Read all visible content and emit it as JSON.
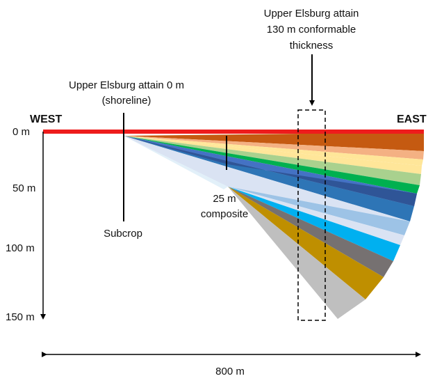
{
  "labels": {
    "west": "WEST",
    "east": "EAST",
    "shoreline_line1": "Upper Elsburg attain 0 m",
    "shoreline_line2": "(shoreline)",
    "thickness_line1": "Upper Elsburg attain",
    "thickness_line2": "130 m conformable",
    "thickness_line3": "thickness",
    "composite_line1": "25 m",
    "composite_line2": "composite",
    "subcrop": "Subcrop",
    "width": "800 m"
  },
  "depth_ticks": [
    "0 m",
    "50 m",
    "100 m",
    "150 m"
  ],
  "colors": {
    "top_bar": "#ee1c1c",
    "layers": [
      "#c55a11",
      "#f4b183",
      "#ffe699",
      "#a9d18e",
      "#00b050",
      "#2f5597",
      "#4472c4",
      "#2e75b6",
      "#9dc3e6",
      "#dae3f3",
      "#00b0f0",
      "#767171",
      "#bf8f00",
      "#bfbfbf"
    ]
  }
}
